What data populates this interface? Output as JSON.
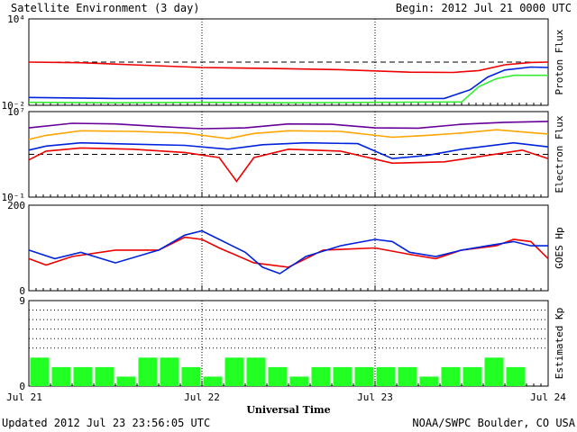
{
  "header": {
    "title": "Satellite Environment (3 day)",
    "begin": "Begin:  2012 Jul 21 0000 UTC"
  },
  "footer": {
    "updated": "Updated 2012 Jul 23 23:56:05 UTC",
    "source": "NOAA/SWPC Boulder, CO USA"
  },
  "colors": {
    "red": "#ee0000",
    "blue": "#0022dd",
    "green": "#33ee33",
    "orange": "#ffa500",
    "purple": "#660099",
    "kp_bar": "#22ff22",
    "frame": "#000000"
  },
  "chart_data": {
    "type": "line",
    "xlabel": "Universal Time",
    "x_ticks": [
      "Jul 21",
      "Jul 22",
      "Jul 23",
      "Jul 24"
    ],
    "x_range_days": [
      0,
      3
    ],
    "panels": [
      {
        "name": "Proton Flux",
        "scale": "log",
        "ylim": [
          0.01,
          10000
        ],
        "yticks": [
          {
            "value": 10000,
            "label": "10⁴"
          },
          {
            "value": 0.01,
            "label": "10⁻²"
          }
        ],
        "threshold": 10,
        "series": [
          {
            "color_key": "red",
            "points": [
              [
                0,
                10
              ],
              [
                0.3,
                9
              ],
              [
                0.6,
                6.5
              ],
              [
                1.0,
                4.2
              ],
              [
                1.4,
                3.6
              ],
              [
                1.8,
                3
              ],
              [
                2.2,
                2
              ],
              [
                2.45,
                1.9
              ],
              [
                2.6,
                2.6
              ],
              [
                2.75,
                6.5
              ],
              [
                2.9,
                9.5
              ],
              [
                3.0,
                10
              ]
            ]
          },
          {
            "color_key": "blue",
            "points": [
              [
                0,
                0.035
              ],
              [
                0.5,
                0.03
              ],
              [
                1.0,
                0.03
              ],
              [
                1.5,
                0.03
              ],
              [
                2.0,
                0.03
              ],
              [
                2.4,
                0.03
              ],
              [
                2.55,
                0.12
              ],
              [
                2.65,
                0.9
              ],
              [
                2.75,
                2.8
              ],
              [
                2.9,
                4.5
              ],
              [
                3.0,
                4.2
              ]
            ]
          },
          {
            "color_key": "green",
            "points": [
              [
                0,
                0.016
              ],
              [
                0.5,
                0.015
              ],
              [
                1.0,
                0.016
              ],
              [
                1.5,
                0.015
              ],
              [
                2.0,
                0.016
              ],
              [
                2.5,
                0.017
              ],
              [
                2.6,
                0.2
              ],
              [
                2.7,
                0.7
              ],
              [
                2.8,
                1.2
              ],
              [
                3.0,
                1.2
              ]
            ]
          }
        ]
      },
      {
        "name": "Electron Flux",
        "scale": "log",
        "ylim": [
          0.1,
          10000000
        ],
        "yticks": [
          {
            "value": 10000000,
            "label": "10⁷"
          },
          {
            "value": 0.1,
            "label": "10⁻¹"
          }
        ],
        "threshold": 1000,
        "series": [
          {
            "color_key": "purple",
            "points": [
              [
                0,
                300000
              ],
              [
                0.25,
                800000
              ],
              [
                0.5,
                700000
              ],
              [
                0.75,
                400000
              ],
              [
                1.0,
                250000
              ],
              [
                1.25,
                300000
              ],
              [
                1.5,
                700000
              ],
              [
                1.75,
                650000
              ],
              [
                2.0,
                300000
              ],
              [
                2.25,
                280000
              ],
              [
                2.5,
                650000
              ],
              [
                2.75,
                1000000
              ],
              [
                3.0,
                1200000
              ]
            ]
          },
          {
            "color_key": "orange",
            "points": [
              [
                0,
                25000
              ],
              [
                0.1,
                60000
              ],
              [
                0.3,
                160000
              ],
              [
                0.6,
                140000
              ],
              [
                0.9,
                100000
              ],
              [
                1.15,
                30000
              ],
              [
                1.3,
                90000
              ],
              [
                1.5,
                160000
              ],
              [
                1.8,
                140000
              ],
              [
                2.1,
                40000
              ],
              [
                2.3,
                60000
              ],
              [
                2.5,
                100000
              ],
              [
                2.7,
                200000
              ],
              [
                3.0,
                80000
              ]
            ]
          },
          {
            "color_key": "blue",
            "points": [
              [
                0,
                2500
              ],
              [
                0.1,
                6000
              ],
              [
                0.3,
                12000
              ],
              [
                0.6,
                9000
              ],
              [
                0.9,
                7000
              ],
              [
                1.15,
                3000
              ],
              [
                1.35,
                8000
              ],
              [
                1.6,
                12000
              ],
              [
                1.9,
                10000
              ],
              [
                2.1,
                400
              ],
              [
                2.3,
                800
              ],
              [
                2.5,
                3000
              ],
              [
                2.8,
                12000
              ],
              [
                3.0,
                5000
              ]
            ]
          },
          {
            "color_key": "red",
            "points": [
              [
                0,
                300
              ],
              [
                0.1,
                2000
              ],
              [
                0.3,
                4000
              ],
              [
                0.6,
                3000
              ],
              [
                0.9,
                1500
              ],
              [
                1.1,
                500
              ],
              [
                1.2,
                3
              ],
              [
                1.3,
                500
              ],
              [
                1.5,
                3000
              ],
              [
                1.8,
                2000
              ],
              [
                2.1,
                150
              ],
              [
                2.4,
                200
              ],
              [
                2.6,
                600
              ],
              [
                2.85,
                2500
              ],
              [
                3.0,
                400
              ]
            ]
          }
        ]
      },
      {
        "name": "GOES Hp",
        "scale": "linear",
        "ylim": [
          0,
          200
        ],
        "yticks": [
          {
            "value": 200,
            "label": "200"
          },
          {
            "value": 0,
            "label": "0"
          }
        ],
        "series": [
          {
            "color_key": "red",
            "points": [
              [
                0,
                75
              ],
              [
                0.1,
                60
              ],
              [
                0.25,
                80
              ],
              [
                0.5,
                95
              ],
              [
                0.75,
                95
              ],
              [
                0.9,
                125
              ],
              [
                1.0,
                120
              ],
              [
                1.1,
                100
              ],
              [
                1.3,
                65
              ],
              [
                1.5,
                55
              ],
              [
                1.7,
                95
              ],
              [
                2.0,
                100
              ],
              [
                2.2,
                85
              ],
              [
                2.35,
                75
              ],
              [
                2.5,
                95
              ],
              [
                2.7,
                105
              ],
              [
                2.8,
                120
              ],
              [
                2.9,
                115
              ],
              [
                3.0,
                75
              ]
            ]
          },
          {
            "color_key": "blue",
            "points": [
              [
                0,
                95
              ],
              [
                0.15,
                75
              ],
              [
                0.3,
                90
              ],
              [
                0.5,
                65
              ],
              [
                0.75,
                95
              ],
              [
                0.9,
                130
              ],
              [
                1.0,
                140
              ],
              [
                1.1,
                120
              ],
              [
                1.25,
                90
              ],
              [
                1.35,
                55
              ],
              [
                1.45,
                40
              ],
              [
                1.6,
                80
              ],
              [
                1.8,
                105
              ],
              [
                2.0,
                120
              ],
              [
                2.1,
                115
              ],
              [
                2.2,
                90
              ],
              [
                2.35,
                80
              ],
              [
                2.5,
                95
              ],
              [
                2.65,
                105
              ],
              [
                2.8,
                115
              ],
              [
                2.9,
                105
              ],
              [
                3.0,
                105
              ]
            ]
          }
        ]
      },
      {
        "name": "Estimated Kp",
        "scale": "linear",
        "ylim": [
          0,
          9
        ],
        "yticks": [
          {
            "value": 9,
            "label": "9"
          },
          {
            "value": 0,
            "label": "0"
          }
        ],
        "gridlines": [
          4,
          5,
          6,
          7,
          8
        ],
        "bars": {
          "color_key": "kp_bar",
          "interval_hours": 3,
          "values": [
            3,
            2,
            2,
            2,
            1,
            3,
            3,
            2,
            1,
            3,
            3,
            2,
            1,
            2,
            2,
            2,
            2,
            2,
            1,
            2,
            2,
            3,
            2,
            0
          ]
        }
      }
    ]
  }
}
